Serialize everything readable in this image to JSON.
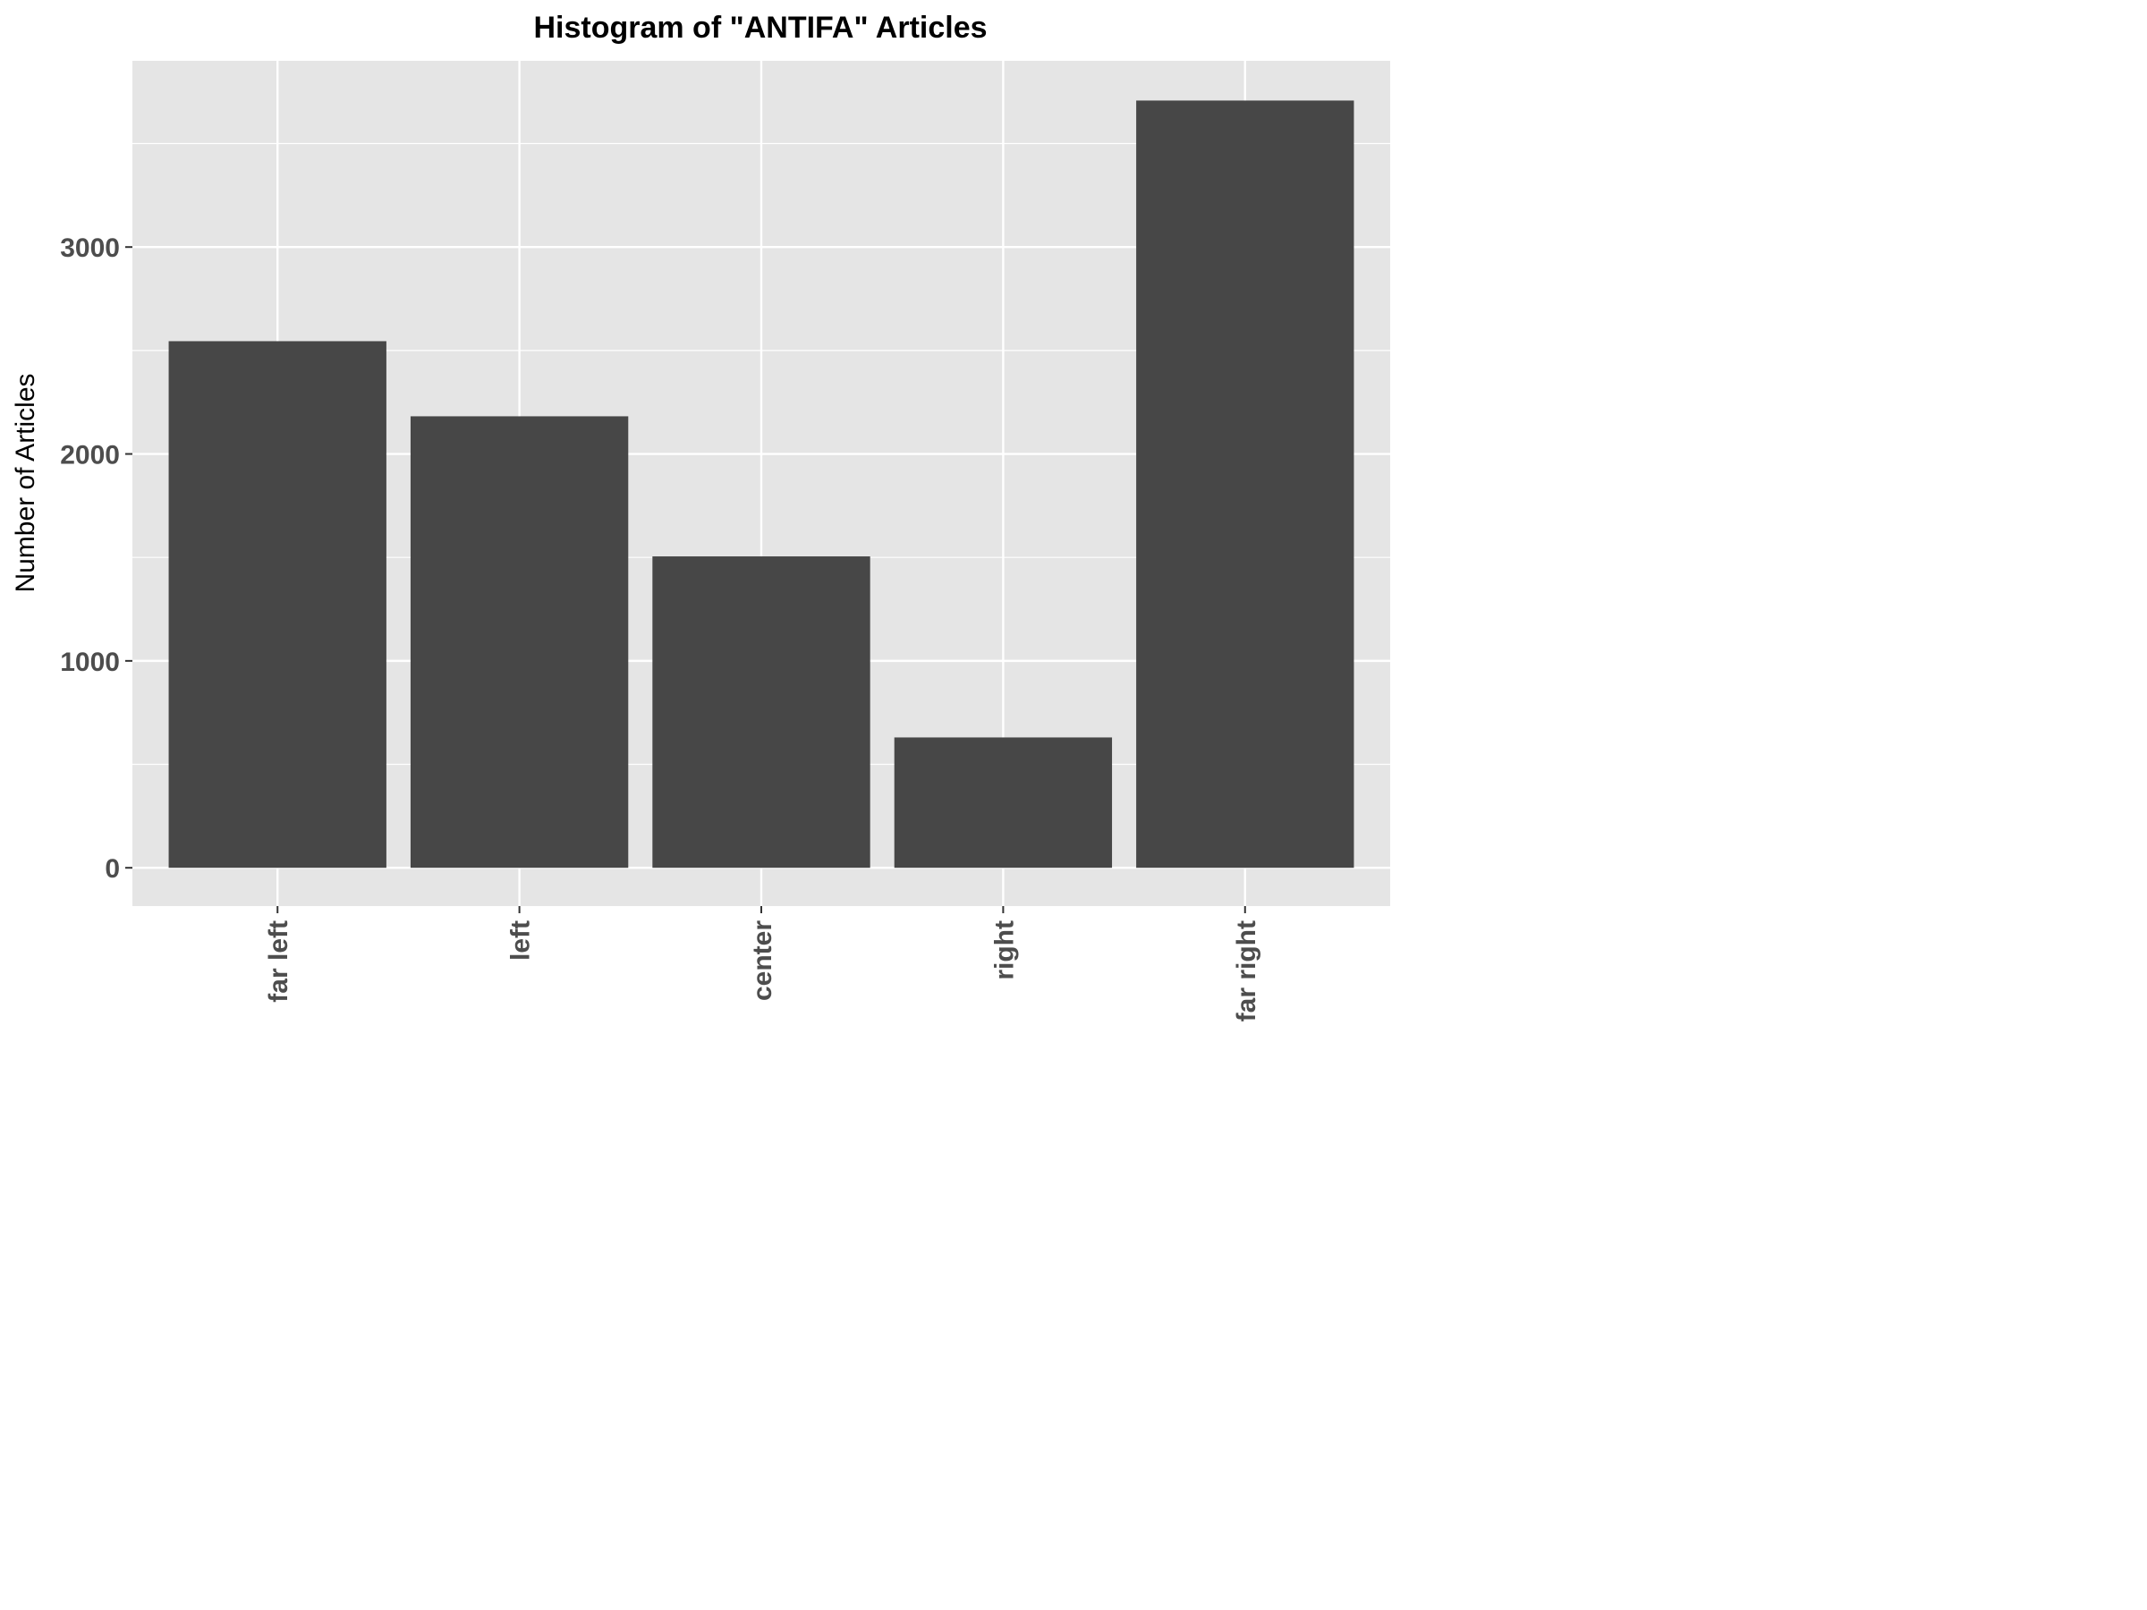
{
  "chart_data": {
    "type": "bar",
    "title": "Histogram of \"ANTIFA\" Articles",
    "xlabel": "",
    "ylabel": "Number of Articles",
    "categories": [
      "far left",
      "left",
      "center",
      "right",
      "far right"
    ],
    "values": [
      2545,
      2182,
      1505,
      630,
      3708
    ],
    "ylim": [
      -185,
      3900
    ],
    "yticks": [
      0,
      1000,
      2000,
      3000
    ],
    "y_minor_ticks": [
      500,
      1500,
      2500,
      3500
    ],
    "grid": true,
    "legend": "none",
    "colors": {
      "bar": "#474747",
      "panel": "#e5e5e5",
      "grid": "#ffffff",
      "tick_text": "#4d4d4d",
      "axis_tick": "#333333"
    }
  }
}
